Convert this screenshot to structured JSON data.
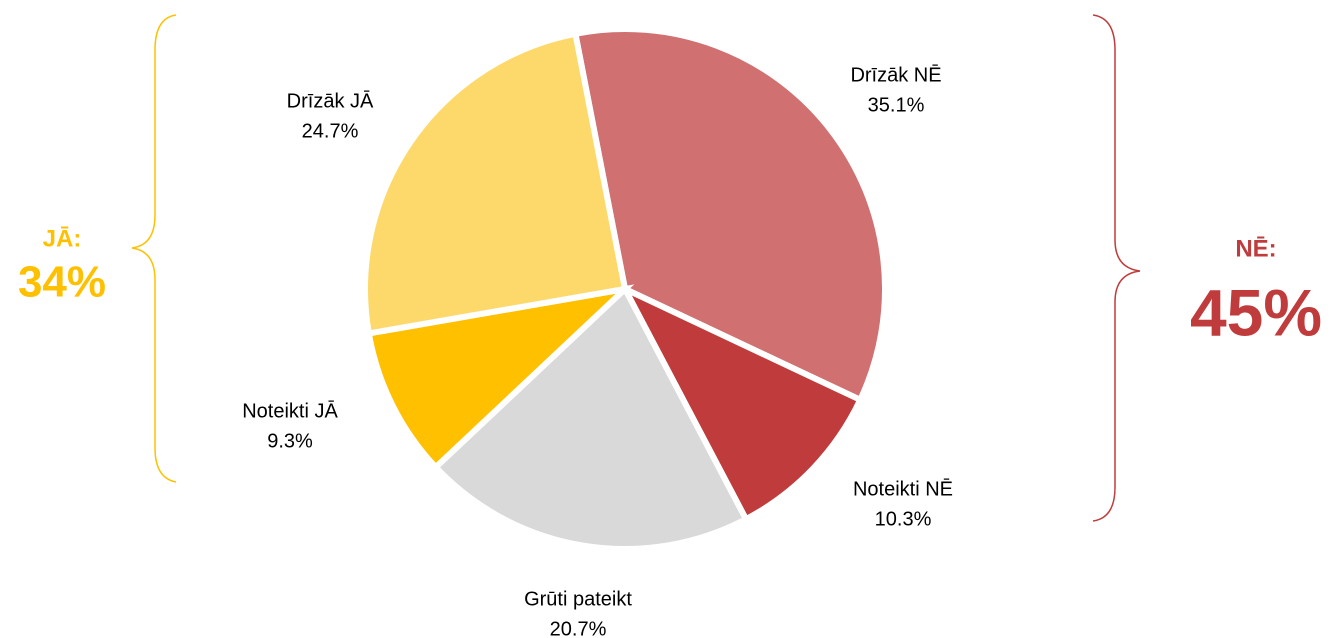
{
  "chart_data": {
    "type": "pie",
    "categories": [
      "Drīzāk NĒ",
      "Noteikti NĒ",
      "Grūti pateikt",
      "Noteikti JĀ",
      "Drīzāk JĀ"
    ],
    "values": [
      35.1,
      10.3,
      20.7,
      9.3,
      24.7
    ],
    "value_labels": [
      "35.1%",
      "10.3%",
      "20.7%",
      "9.3%",
      "24.7%"
    ],
    "colors": [
      "#d07070",
      "#c03c3c",
      "#d9d9d9",
      "#ffc000",
      "#fdd96b"
    ],
    "annotations": [
      {
        "text": "JĀ:",
        "color": "#ffc000"
      },
      {
        "text": "34%",
        "color": "#ffc000"
      },
      {
        "text": "NĒ:",
        "color": "#c03c3c"
      },
      {
        "text": "45%",
        "color": "#c03c3c"
      }
    ]
  }
}
